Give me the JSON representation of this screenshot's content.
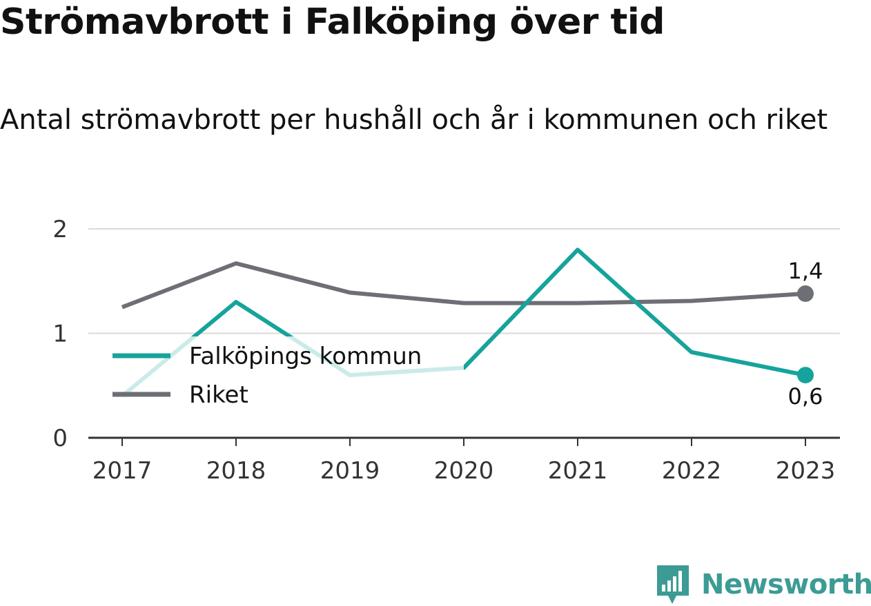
{
  "title": "Strömavbrott i Falköping över tid",
  "subtitle": "Antal strömavbrott per hushåll och år i kommunen och riket",
  "brand": {
    "name": "Newsworthy",
    "icon": "newsworthy-logo-icon",
    "color": "#3d9b95"
  },
  "chart_data": {
    "type": "line",
    "title": "Strömavbrott i Falköping över tid",
    "subtitle": "Antal strömavbrott per hushåll och år i kommunen och riket",
    "xlabel": "",
    "ylabel": "",
    "x": [
      "2017",
      "2018",
      "2019",
      "2020",
      "2021",
      "2022",
      "2023"
    ],
    "ylim": [
      0,
      2
    ],
    "yticks": [
      "0",
      "1",
      "2"
    ],
    "grid": true,
    "legend_position": "bottom-left",
    "series": [
      {
        "name": "Falköpings kommun",
        "color": "#16a39b",
        "values": [
          0.4,
          1.3,
          0.6,
          0.67,
          1.8,
          0.82,
          0.6
        ]
      },
      {
        "name": "Riket",
        "color": "#6e6e76",
        "values": [
          1.25,
          1.67,
          1.39,
          1.29,
          1.29,
          1.31,
          1.38
        ]
      }
    ],
    "end_labels": [
      {
        "series": "Riket",
        "text": "1,4",
        "position": "above"
      },
      {
        "series": "Falköpings kommun",
        "text": "0,6",
        "position": "below"
      }
    ]
  }
}
